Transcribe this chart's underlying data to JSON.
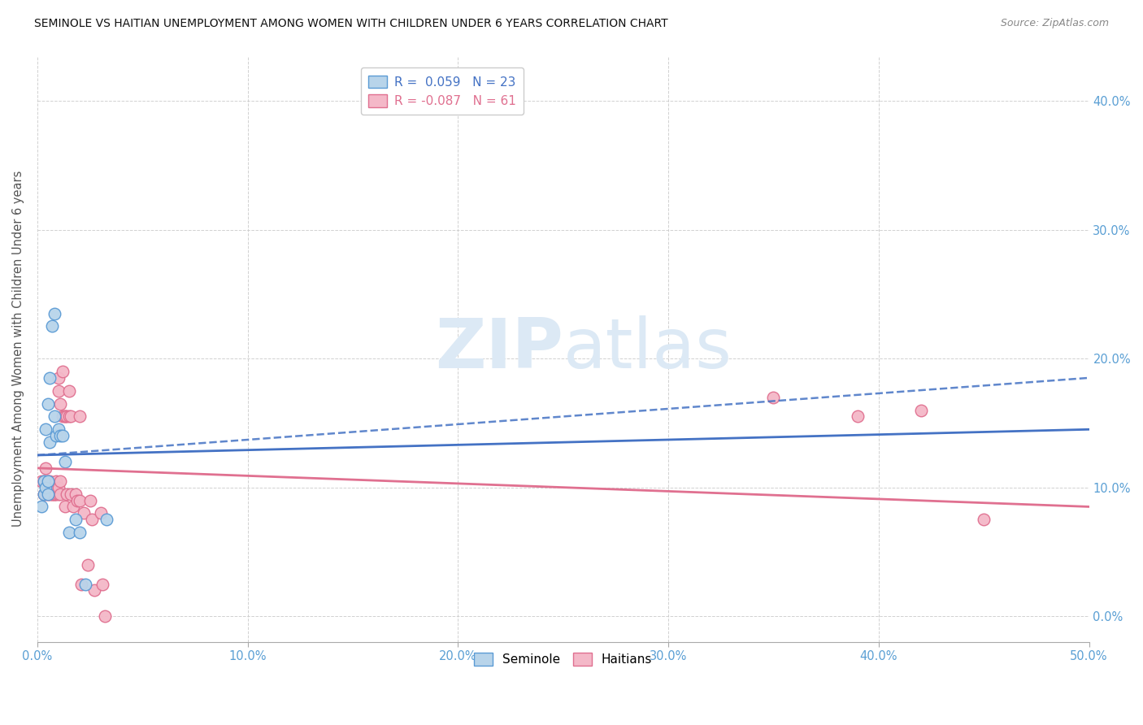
{
  "title": "SEMINOLE VS HAITIAN UNEMPLOYMENT AMONG WOMEN WITH CHILDREN UNDER 6 YEARS CORRELATION CHART",
  "source": "Source: ZipAtlas.com",
  "ylabel": "Unemployment Among Women with Children Under 6 years",
  "xlim": [
    0,
    0.5
  ],
  "ylim": [
    -0.02,
    0.435
  ],
  "xticks": [
    0.0,
    0.1,
    0.2,
    0.3,
    0.4,
    0.5
  ],
  "yticks": [
    0.0,
    0.1,
    0.2,
    0.3,
    0.4
  ],
  "ytick_labels_right": [
    "0.0%",
    "10.0%",
    "20.0%",
    "30.0%",
    "40.0%"
  ],
  "xtick_labels": [
    "0.0%",
    "10.0%",
    "20.0%",
    "30.0%",
    "40.0%",
    "50.0%"
  ],
  "seminole_R": 0.059,
  "seminole_N": 23,
  "haitian_R": -0.087,
  "haitian_N": 61,
  "seminole_color": "#b8d4ea",
  "seminole_edge_color": "#5b9bd5",
  "haitian_color": "#f4b8c8",
  "haitian_edge_color": "#e07090",
  "seminole_line_color": "#4472c4",
  "haitian_line_color": "#e07090",
  "dashed_line_color": "#4472c4",
  "watermark_zip": "ZIP",
  "watermark_atlas": "atlas",
  "watermark_color": "#dce9f5",
  "seminole_x": [
    0.002,
    0.003,
    0.003,
    0.004,
    0.004,
    0.005,
    0.005,
    0.005,
    0.006,
    0.006,
    0.007,
    0.008,
    0.008,
    0.009,
    0.01,
    0.011,
    0.012,
    0.013,
    0.015,
    0.018,
    0.02,
    0.023,
    0.033
  ],
  "seminole_y": [
    0.085,
    0.095,
    0.105,
    0.1,
    0.145,
    0.095,
    0.105,
    0.165,
    0.135,
    0.185,
    0.225,
    0.235,
    0.155,
    0.14,
    0.145,
    0.14,
    0.14,
    0.12,
    0.065,
    0.075,
    0.065,
    0.025,
    0.075
  ],
  "haitian_x": [
    0.002,
    0.003,
    0.003,
    0.004,
    0.004,
    0.004,
    0.005,
    0.005,
    0.005,
    0.005,
    0.006,
    0.006,
    0.006,
    0.007,
    0.007,
    0.007,
    0.007,
    0.007,
    0.008,
    0.008,
    0.008,
    0.008,
    0.009,
    0.009,
    0.009,
    0.01,
    0.01,
    0.01,
    0.01,
    0.011,
    0.011,
    0.011,
    0.012,
    0.012,
    0.013,
    0.013,
    0.013,
    0.014,
    0.014,
    0.015,
    0.015,
    0.016,
    0.016,
    0.017,
    0.018,
    0.019,
    0.02,
    0.02,
    0.021,
    0.022,
    0.024,
    0.025,
    0.026,
    0.027,
    0.03,
    0.031,
    0.032,
    0.35,
    0.39,
    0.42,
    0.45
  ],
  "haitian_y": [
    0.105,
    0.105,
    0.095,
    0.115,
    0.105,
    0.095,
    0.1,
    0.1,
    0.095,
    0.105,
    0.105,
    0.095,
    0.1,
    0.095,
    0.1,
    0.1,
    0.095,
    0.1,
    0.095,
    0.1,
    0.095,
    0.1,
    0.1,
    0.095,
    0.105,
    0.185,
    0.175,
    0.095,
    0.1,
    0.165,
    0.095,
    0.105,
    0.19,
    0.155,
    0.155,
    0.155,
    0.085,
    0.155,
    0.095,
    0.175,
    0.155,
    0.095,
    0.155,
    0.085,
    0.095,
    0.09,
    0.09,
    0.155,
    0.025,
    0.08,
    0.04,
    0.09,
    0.075,
    0.02,
    0.08,
    0.025,
    0.0,
    0.17,
    0.155,
    0.16,
    0.075
  ],
  "seminole_trendline_x": [
    0.0,
    0.5
  ],
  "seminole_trendline_y": [
    0.125,
    0.145
  ],
  "haitian_trendline_x": [
    0.0,
    0.5
  ],
  "haitian_trendline_y": [
    0.115,
    0.085
  ],
  "dashed_line_x": [
    0.0,
    0.5
  ],
  "dashed_line_y": [
    0.125,
    0.185
  ]
}
